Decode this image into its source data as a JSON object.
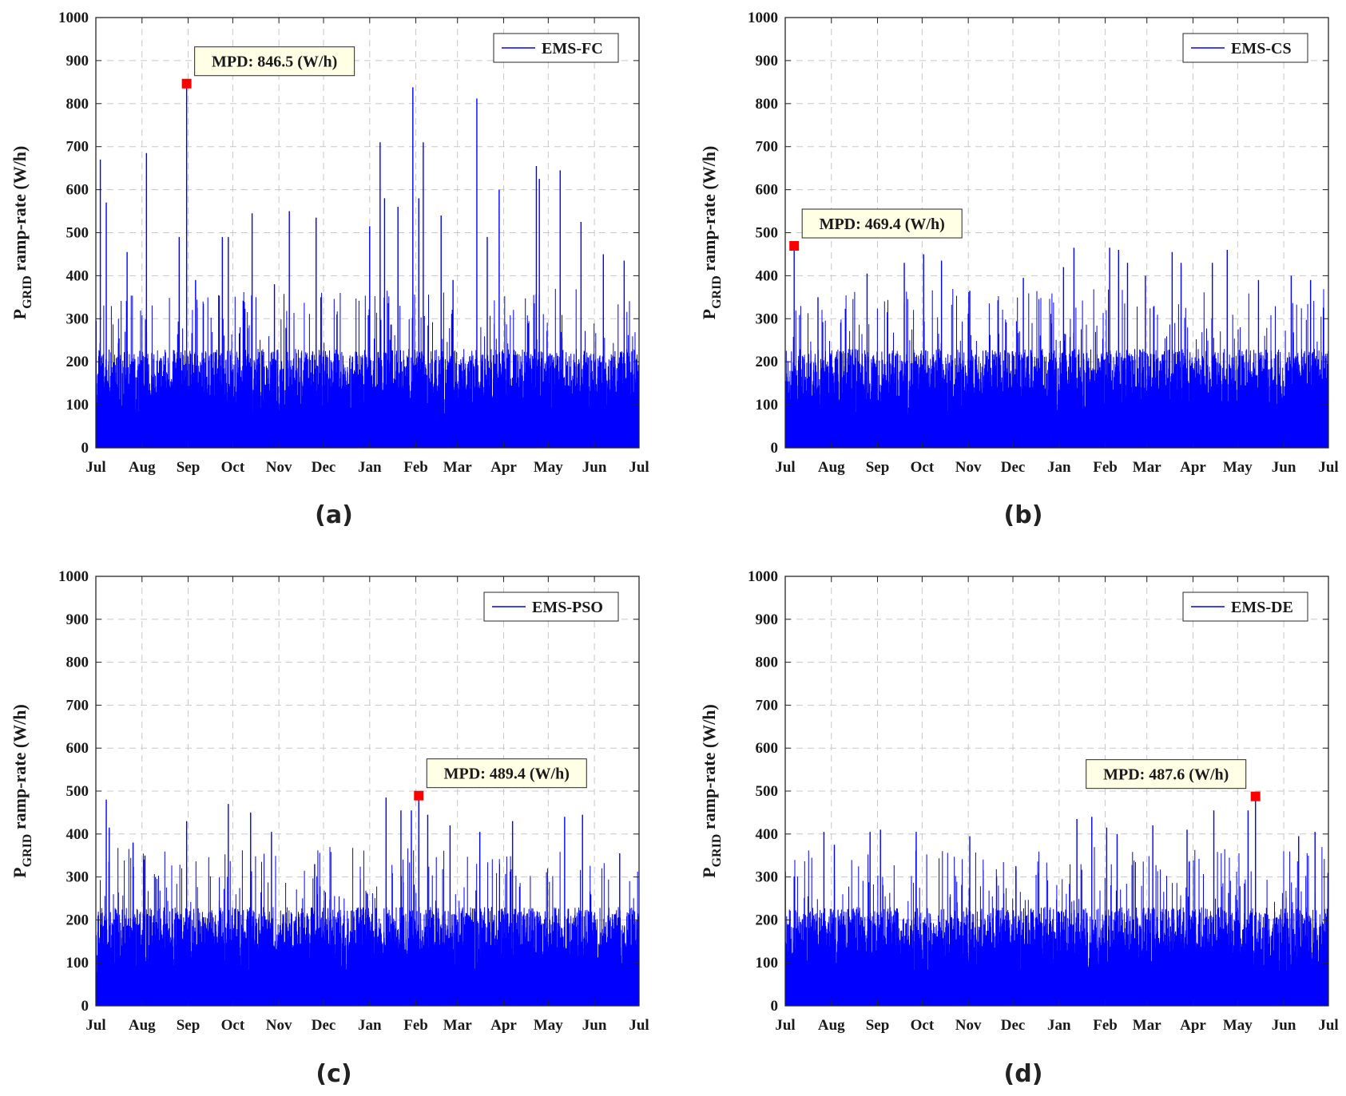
{
  "figure": {
    "panel_captions": [
      "(a)",
      "(b)",
      "(c)",
      "(d)"
    ]
  },
  "chart_data": [
    {
      "type": "line",
      "caption": "(a)",
      "legend": "EMS-FC",
      "ylabel_main": "P",
      "ylabel_sub": "GRID",
      "ylabel_rest": " ramp-rate (W/h)",
      "ylim": [
        0,
        1000
      ],
      "yticks": [
        0,
        100,
        200,
        300,
        400,
        500,
        600,
        700,
        800,
        900,
        1000
      ],
      "xlim": [
        0,
        365
      ],
      "xticks": [
        {
          "label": "Jul",
          "day": 0
        },
        {
          "label": "Aug",
          "day": 31
        },
        {
          "label": "Sep",
          "day": 62
        },
        {
          "label": "Oct",
          "day": 92
        },
        {
          "label": "Nov",
          "day": 123
        },
        {
          "label": "Dec",
          "day": 153
        },
        {
          "label": "Jan",
          "day": 184
        },
        {
          "label": "Feb",
          "day": 215
        },
        {
          "label": "Mar",
          "day": 243
        },
        {
          "label": "Apr",
          "day": 274
        },
        {
          "label": "May",
          "day": 304
        },
        {
          "label": "Jun",
          "day": 335
        },
        {
          "label": "Jul",
          "day": 365
        }
      ],
      "grid": true,
      "legend_position": "top-right",
      "color": "#0000ff",
      "base_level": 200,
      "annotation": {
        "label": "MPD: 846.5 (W/h)",
        "day": 61,
        "value": 846.5,
        "box_side": "right"
      },
      "peaks": [
        {
          "day": 3,
          "value": 670
        },
        {
          "day": 7,
          "value": 570
        },
        {
          "day": 21,
          "value": 455
        },
        {
          "day": 34,
          "value": 685
        },
        {
          "day": 56,
          "value": 490
        },
        {
          "day": 61,
          "value": 846.5
        },
        {
          "day": 67,
          "value": 390
        },
        {
          "day": 85,
          "value": 490
        },
        {
          "day": 89,
          "value": 490
        },
        {
          "day": 105,
          "value": 545
        },
        {
          "day": 120,
          "value": 380
        },
        {
          "day": 130,
          "value": 550
        },
        {
          "day": 148,
          "value": 535
        },
        {
          "day": 162,
          "value": 310
        },
        {
          "day": 184,
          "value": 515
        },
        {
          "day": 191,
          "value": 710
        },
        {
          "day": 194,
          "value": 580
        },
        {
          "day": 203,
          "value": 560
        },
        {
          "day": 213,
          "value": 838
        },
        {
          "day": 217,
          "value": 580
        },
        {
          "day": 220,
          "value": 710
        },
        {
          "day": 232,
          "value": 540
        },
        {
          "day": 240,
          "value": 390
        },
        {
          "day": 256,
          "value": 812
        },
        {
          "day": 263,
          "value": 490
        },
        {
          "day": 271,
          "value": 600
        },
        {
          "day": 296,
          "value": 655
        },
        {
          "day": 298,
          "value": 625
        },
        {
          "day": 312,
          "value": 645
        },
        {
          "day": 326,
          "value": 525
        },
        {
          "day": 341,
          "value": 450
        },
        {
          "day": 355,
          "value": 435
        }
      ]
    },
    {
      "type": "line",
      "caption": "(b)",
      "legend": "EMS-CS",
      "ylabel_main": "P",
      "ylabel_sub": "GRID",
      "ylabel_rest": " ramp-rate (W/h)",
      "ylim": [
        0,
        1000
      ],
      "yticks": [
        0,
        100,
        200,
        300,
        400,
        500,
        600,
        700,
        800,
        900,
        1000
      ],
      "xlim": [
        0,
        365
      ],
      "xticks": [
        {
          "label": "Jul",
          "day": 0
        },
        {
          "label": "Aug",
          "day": 31
        },
        {
          "label": "Sep",
          "day": 62
        },
        {
          "label": "Oct",
          "day": 92
        },
        {
          "label": "Nov",
          "day": 123
        },
        {
          "label": "Dec",
          "day": 153
        },
        {
          "label": "Jan",
          "day": 184
        },
        {
          "label": "Feb",
          "day": 215
        },
        {
          "label": "Mar",
          "day": 243
        },
        {
          "label": "Apr",
          "day": 274
        },
        {
          "label": "May",
          "day": 304
        },
        {
          "label": "Jun",
          "day": 335
        },
        {
          "label": "Jul",
          "day": 365
        }
      ],
      "grid": true,
      "legend_position": "top-right",
      "color": "#0000ff",
      "base_level": 200,
      "annotation": {
        "label": "MPD: 469.4 (W/h)",
        "day": 6,
        "value": 469.4,
        "box_side": "right"
      },
      "peaks": [
        {
          "day": 6,
          "value": 469.4
        },
        {
          "day": 22,
          "value": 350
        },
        {
          "day": 55,
          "value": 405
        },
        {
          "day": 80,
          "value": 430
        },
        {
          "day": 93,
          "value": 450
        },
        {
          "day": 105,
          "value": 435
        },
        {
          "day": 124,
          "value": 365
        },
        {
          "day": 160,
          "value": 395
        },
        {
          "day": 187,
          "value": 420
        },
        {
          "day": 194,
          "value": 465
        },
        {
          "day": 218,
          "value": 465
        },
        {
          "day": 224,
          "value": 460
        },
        {
          "day": 230,
          "value": 430
        },
        {
          "day": 242,
          "value": 400
        },
        {
          "day": 260,
          "value": 455
        },
        {
          "day": 266,
          "value": 430
        },
        {
          "day": 287,
          "value": 430
        },
        {
          "day": 297,
          "value": 460
        },
        {
          "day": 318,
          "value": 390
        },
        {
          "day": 340,
          "value": 400
        },
        {
          "day": 353,
          "value": 390
        }
      ]
    },
    {
      "type": "line",
      "caption": "(c)",
      "legend": "EMS-PSO",
      "ylabel_main": "P",
      "ylabel_sub": "GRID",
      "ylabel_rest": " ramp-rate (W/h)",
      "ylim": [
        0,
        1000
      ],
      "yticks": [
        0,
        100,
        200,
        300,
        400,
        500,
        600,
        700,
        800,
        900,
        1000
      ],
      "xlim": [
        0,
        365
      ],
      "xticks": [
        {
          "label": "Jul",
          "day": 0
        },
        {
          "label": "Aug",
          "day": 31
        },
        {
          "label": "Sep",
          "day": 62
        },
        {
          "label": "Oct",
          "day": 92
        },
        {
          "label": "Nov",
          "day": 123
        },
        {
          "label": "Dec",
          "day": 153
        },
        {
          "label": "Jan",
          "day": 184
        },
        {
          "label": "Feb",
          "day": 215
        },
        {
          "label": "Mar",
          "day": 243
        },
        {
          "label": "Apr",
          "day": 274
        },
        {
          "label": "May",
          "day": 304
        },
        {
          "label": "Jun",
          "day": 335
        },
        {
          "label": "Jul",
          "day": 365
        }
      ],
      "grid": true,
      "legend_position": "top-right",
      "color": "#0000ff",
      "base_level": 200,
      "annotation": {
        "label": "MPD: 489.4 (W/h)",
        "day": 217,
        "value": 489.4,
        "box_side": "right"
      },
      "peaks": [
        {
          "day": 7,
          "value": 480
        },
        {
          "day": 9,
          "value": 415
        },
        {
          "day": 25,
          "value": 380
        },
        {
          "day": 33,
          "value": 350
        },
        {
          "day": 61,
          "value": 430
        },
        {
          "day": 89,
          "value": 470
        },
        {
          "day": 104,
          "value": 450
        },
        {
          "day": 118,
          "value": 405
        },
        {
          "day": 147,
          "value": 330
        },
        {
          "day": 195,
          "value": 485
        },
        {
          "day": 205,
          "value": 455
        },
        {
          "day": 212,
          "value": 455
        },
        {
          "day": 217,
          "value": 489.4
        },
        {
          "day": 223,
          "value": 445
        },
        {
          "day": 238,
          "value": 420
        },
        {
          "day": 258,
          "value": 405
        },
        {
          "day": 280,
          "value": 430
        },
        {
          "day": 315,
          "value": 440
        },
        {
          "day": 327,
          "value": 445
        },
        {
          "day": 352,
          "value": 355
        }
      ]
    },
    {
      "type": "line",
      "caption": "(d)",
      "legend": "EMS-DE",
      "ylabel_main": "P",
      "ylabel_sub": "GRID",
      "ylabel_rest": " ramp-rate (W/h)",
      "ylim": [
        0,
        1000
      ],
      "yticks": [
        0,
        100,
        200,
        300,
        400,
        500,
        600,
        700,
        800,
        900,
        1000
      ],
      "xlim": [
        0,
        365
      ],
      "xticks": [
        {
          "label": "Jul",
          "day": 0
        },
        {
          "label": "Aug",
          "day": 31
        },
        {
          "label": "Sep",
          "day": 62
        },
        {
          "label": "Oct",
          "day": 92
        },
        {
          "label": "Nov",
          "day": 123
        },
        {
          "label": "Dec",
          "day": 153
        },
        {
          "label": "Jan",
          "day": 184
        },
        {
          "label": "Feb",
          "day": 215
        },
        {
          "label": "Mar",
          "day": 243
        },
        {
          "label": "Apr",
          "day": 274
        },
        {
          "label": "May",
          "day": 304
        },
        {
          "label": "Jun",
          "day": 335
        },
        {
          "label": "Jul",
          "day": 365
        }
      ],
      "grid": true,
      "legend_position": "top-right",
      "color": "#0000ff",
      "base_level": 200,
      "annotation": {
        "label": "MPD: 487.6 (W/h)",
        "day": 316,
        "value": 487.6,
        "box_side": "left"
      },
      "peaks": [
        {
          "day": 26,
          "value": 405
        },
        {
          "day": 33,
          "value": 375
        },
        {
          "day": 57,
          "value": 405
        },
        {
          "day": 64,
          "value": 410
        },
        {
          "day": 88,
          "value": 405
        },
        {
          "day": 124,
          "value": 395
        },
        {
          "day": 155,
          "value": 325
        },
        {
          "day": 196,
          "value": 435
        },
        {
          "day": 206,
          "value": 440
        },
        {
          "day": 216,
          "value": 415
        },
        {
          "day": 223,
          "value": 400
        },
        {
          "day": 247,
          "value": 420
        },
        {
          "day": 270,
          "value": 410
        },
        {
          "day": 288,
          "value": 455
        },
        {
          "day": 311,
          "value": 455
        },
        {
          "day": 316,
          "value": 487.6
        },
        {
          "day": 345,
          "value": 395
        },
        {
          "day": 356,
          "value": 405
        }
      ]
    }
  ]
}
